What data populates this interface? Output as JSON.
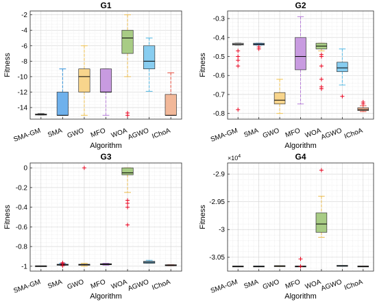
{
  "chart_data": [
    {
      "type": "box",
      "title": "G1",
      "xlabel": "Algorithm",
      "ylabel": "Fitness",
      "categories": [
        "SMA-GM",
        "SMA",
        "GWO",
        "MFO",
        "WOA",
        "AGWO",
        "IChoA"
      ],
      "ylim": [
        -15.5,
        -1.5
      ],
      "yticks": [
        -14,
        -12,
        -10,
        -8,
        -6,
        -4,
        -2
      ],
      "ytick_labels": [
        "-14",
        "-12",
        "-10",
        "-8",
        "-6",
        "-4",
        "-2"
      ],
      "grid": true,
      "boxes": [
        {
          "min": -14.95,
          "q1": -14.95,
          "median": -14.9,
          "q3": -14.85,
          "max": -14.8,
          "outliers": []
        },
        {
          "min": -15.0,
          "q1": -15.0,
          "median": -15.0,
          "q3": -12.0,
          "max": -9.0,
          "outliers": []
        },
        {
          "min": -15.0,
          "q1": -12.0,
          "median": -10.0,
          "q3": -9.0,
          "max": -6.0,
          "outliers": []
        },
        {
          "min": -15.0,
          "q1": -12.0,
          "median": -12.0,
          "q3": -9.0,
          "max": -9.0,
          "outliers": []
        },
        {
          "min": -10.0,
          "q1": -7.0,
          "median": -5.0,
          "q3": -4.0,
          "max": -2.0,
          "outliers": [
            -14.7,
            -15.0
          ]
        },
        {
          "min": -11.9,
          "q1": -9.0,
          "median": -8.0,
          "q3": -6.0,
          "max": -5.0,
          "outliers": []
        },
        {
          "min": -15.0,
          "q1": -15.0,
          "median": -15.0,
          "q3": -12.3,
          "max": -9.5,
          "outliers": []
        }
      ]
    },
    {
      "type": "box",
      "title": "G2",
      "xlabel": "Algorithm",
      "ylabel": "Fitness",
      "categories": [
        "SMA-GM",
        "SMA",
        "GWO",
        "MFO",
        "WOA",
        "AGWO",
        "IChoA"
      ],
      "ylim": [
        -0.83,
        -0.26
      ],
      "yticks": [
        -0.8,
        -0.7,
        -0.6,
        -0.5,
        -0.4,
        -0.3
      ],
      "ytick_labels": [
        "-0.8",
        "-0.7",
        "-0.6",
        "-0.5",
        "-0.4",
        "-0.3"
      ],
      "grid": true,
      "boxes": [
        {
          "min": -0.44,
          "q1": -0.44,
          "median": -0.435,
          "q3": -0.43,
          "max": -0.43,
          "outliers": [
            -0.47,
            -0.5,
            -0.52,
            -0.55,
            -0.78
          ]
        },
        {
          "min": -0.44,
          "q1": -0.44,
          "median": -0.435,
          "q3": -0.43,
          "max": -0.43,
          "outliers": [
            -0.45,
            -0.46
          ]
        },
        {
          "min": -0.8,
          "q1": -0.75,
          "median": -0.73,
          "q3": -0.69,
          "max": -0.62,
          "outliers": []
        },
        {
          "min": -0.75,
          "q1": -0.57,
          "median": -0.5,
          "q3": -0.4,
          "max": -0.29,
          "outliers": []
        },
        {
          "min": -0.47,
          "q1": -0.46,
          "median": -0.445,
          "q3": -0.43,
          "max": -0.43,
          "outliers": [
            -0.49,
            -0.5,
            -0.55,
            -0.62,
            -0.66,
            -0.67
          ]
        },
        {
          "min": -0.65,
          "q1": -0.58,
          "median": -0.56,
          "q3": -0.53,
          "max": -0.46,
          "outliers": [
            -0.71
          ]
        },
        {
          "min": -0.79,
          "q1": -0.785,
          "median": -0.78,
          "q3": -0.77,
          "max": -0.76,
          "outliers": [
            -0.74,
            -0.75
          ]
        }
      ]
    },
    {
      "type": "box",
      "title": "G3",
      "xlabel": "Algorithm",
      "ylabel": "Fitness",
      "categories": [
        "SMA-GM",
        "SMA",
        "GWO",
        "MFO",
        "WOA",
        "AGWO",
        "IChoA"
      ],
      "ylim": [
        -1.05,
        0.05
      ],
      "yticks": [
        -1,
        -0.8,
        -0.6,
        -0.4,
        -0.2,
        0
      ],
      "ytick_labels": [
        "-1",
        "-0.8",
        "-0.6",
        "-0.4",
        "-0.2",
        "0"
      ],
      "grid": true,
      "boxes": [
        {
          "min": -1.0,
          "q1": -1.0,
          "median": -1.0,
          "q3": -1.0,
          "max": -1.0,
          "outliers": []
        },
        {
          "min": -0.99,
          "q1": -0.99,
          "median": -0.985,
          "q3": -0.98,
          "max": -0.97,
          "outliers": [
            -0.965,
            -0.975,
            -0.995
          ]
        },
        {
          "min": -1.0,
          "q1": -0.99,
          "median": -0.985,
          "q3": -0.98,
          "max": -0.97,
          "outliers": [
            0.0
          ]
        },
        {
          "min": -0.99,
          "q1": -0.985,
          "median": -0.98,
          "q3": -0.975,
          "max": -0.97,
          "outliers": []
        },
        {
          "min": -0.25,
          "q1": -0.07,
          "median": -0.05,
          "q3": 0.0,
          "max": 0.0,
          "outliers": [
            -0.33,
            -0.36,
            -0.4,
            -0.58
          ]
        },
        {
          "min": -0.97,
          "q1": -0.97,
          "median": -0.96,
          "q3": -0.95,
          "max": -0.94,
          "outliers": []
        },
        {
          "min": -0.995,
          "q1": -0.99,
          "median": -0.99,
          "q3": -0.99,
          "max": -0.985,
          "outliers": []
        }
      ]
    },
    {
      "type": "box",
      "title": "G4",
      "xlabel": "Algorithm",
      "ylabel": "Fitness",
      "categories": [
        "SMA-GM",
        "SMA",
        "GWO",
        "MFO",
        "WOA",
        "AGWO",
        "IChoA"
      ],
      "y_exponent_label": "×10",
      "y_exponent_power": "4",
      "ylim": [
        -3.075,
        -2.88
      ],
      "yticks": [
        -3.05,
        -3.0,
        -2.95,
        -2.9
      ],
      "ytick_labels": [
        "-3.05",
        "-3",
        "-2.95",
        "-2.9"
      ],
      "grid": true,
      "boxes": [
        {
          "min": -3.0665,
          "q1": -3.0665,
          "median": -3.0665,
          "q3": -3.0665,
          "max": -3.0665,
          "outliers": []
        },
        {
          "min": -3.0665,
          "q1": -3.0665,
          "median": -3.0665,
          "q3": -3.0665,
          "max": -3.0665,
          "outliers": []
        },
        {
          "min": -3.0665,
          "q1": -3.0665,
          "median": -3.066,
          "q3": -3.0655,
          "max": -3.0655,
          "outliers": []
        },
        {
          "min": -3.0665,
          "q1": -3.0665,
          "median": -3.0665,
          "q3": -3.0665,
          "max": -3.0665,
          "outliers": [
            -3.053,
            -3.0665
          ]
        },
        {
          "min": -3.014,
          "q1": -3.005,
          "median": -2.99,
          "q3": -2.97,
          "max": -2.94,
          "outliers": [
            -2.893
          ]
        },
        {
          "min": -3.066,
          "q1": -3.066,
          "median": -3.0655,
          "q3": -3.065,
          "max": -3.065,
          "outliers": []
        },
        {
          "min": -3.0665,
          "q1": -3.0665,
          "median": -3.0665,
          "q3": -3.0665,
          "max": -3.0665,
          "outliers": []
        }
      ]
    }
  ],
  "colors": {
    "whisker": [
      "#000000",
      "#2d8fd8",
      "#f0c04a",
      "#b47ad6",
      "#eab94a",
      "#4fb7e3",
      "#e74b3c"
    ],
    "median": [
      "#000000",
      "#000000",
      "#000000",
      "#000000",
      "#000000",
      "#000000",
      "#000000"
    ],
    "box_fill": [
      "#f2f2f2",
      "#6fb1ec",
      "#f8d58c",
      "#c89be0",
      "#a8cc85",
      "#88cdf0",
      "#f2b899"
    ],
    "outlier": "#e8001c",
    "grid": "#e3e3e3",
    "axis": "#262626"
  }
}
